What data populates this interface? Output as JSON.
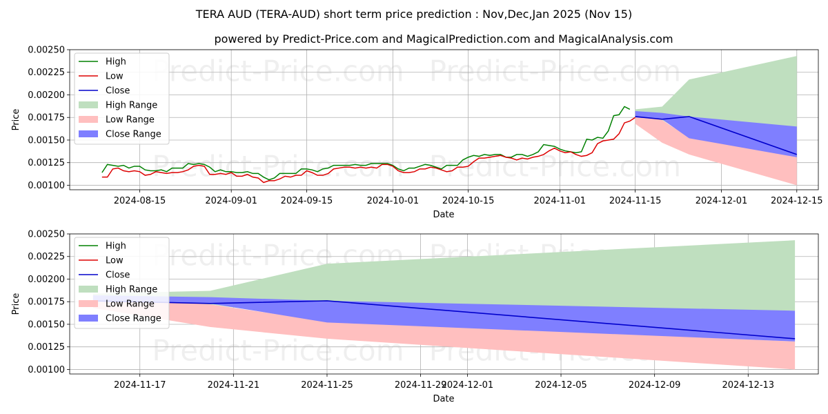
{
  "title": "TERA AUD (TERA-AUD) short term price prediction : Nov,Dec,Jan 2025 (Nov 15)",
  "subtitle": "powered by Predict-Price.com and MagicalPrediction.com and MagicalAnalysis.com",
  "watermark": "Predict-Price.com",
  "colors": {
    "high": "#008000",
    "low": "#dd0000",
    "close": "#0000cc",
    "high_range": "#bfdfbf",
    "low_range": "#ffbfbf",
    "close_range": "#7f7fff",
    "grid": "#b0b0b0"
  },
  "chart_data": [
    {
      "type": "line",
      "title": "",
      "xlabel": "Date",
      "ylabel": "Price",
      "xlim": [
        "2024-08-02",
        "2024-12-19"
      ],
      "ylim": [
        0.00095,
        0.0025
      ],
      "yticks": [
        0.001,
        0.00125,
        0.0015,
        0.00175,
        0.002,
        0.00225,
        0.0025
      ],
      "ytick_labels": [
        "0.00100",
        "0.00125",
        "0.00150",
        "0.00175",
        "0.00200",
        "0.00225",
        "0.00250"
      ],
      "xticks": [
        "2024-08-15",
        "2024-09-01",
        "2024-09-15",
        "2024-10-01",
        "2024-10-15",
        "2024-11-01",
        "2024-11-15",
        "2024-12-01",
        "2024-12-15"
      ],
      "xtick_labels": [
        "2024-08-15",
        "2024-09-01",
        "2024-09-15",
        "2024-10-01",
        "2024-10-15",
        "2024-11-01",
        "2024-11-15",
        "2024-12-01",
        "2024-12-15"
      ],
      "grid": true,
      "legend_position": "top-left",
      "legend": [
        "High",
        "Low",
        "Close",
        "High Range",
        "Low Range",
        "Close Range"
      ],
      "history_start": "2024-08-08",
      "series": [
        {
          "name": "High",
          "values": [
            0.00114,
            0.00123,
            0.00122,
            0.00121,
            0.00122,
            0.00119,
            0.00121,
            0.00121,
            0.00117,
            0.00116,
            0.00116,
            0.00117,
            0.00115,
            0.00119,
            0.00119,
            0.00119,
            0.00124,
            0.00123,
            0.00124,
            0.00123,
            0.0012,
            0.00115,
            0.00117,
            0.00115,
            0.00115,
            0.00114,
            0.00114,
            0.00115,
            0.00113,
            0.00113,
            0.00109,
            0.00106,
            0.00108,
            0.00113,
            0.00113,
            0.00113,
            0.00113,
            0.00118,
            0.00118,
            0.00117,
            0.00115,
            0.00118,
            0.00119,
            0.00122,
            0.00122,
            0.00122,
            0.00122,
            0.00123,
            0.00122,
            0.00122,
            0.00124,
            0.00124,
            0.00124,
            0.00124,
            0.00122,
            0.00118,
            0.00116,
            0.00119,
            0.00119,
            0.00121,
            0.00123,
            0.00122,
            0.0012,
            0.00118,
            0.00122,
            0.00122,
            0.00122,
            0.00128,
            0.00131,
            0.00133,
            0.00132,
            0.00134,
            0.00133,
            0.00134,
            0.00134,
            0.00131,
            0.00131,
            0.00134,
            0.00134,
            0.00132,
            0.00134,
            0.00137,
            0.00145,
            0.00144,
            0.00143,
            0.0014,
            0.00138,
            0.00137,
            0.00136,
            0.00137,
            0.00151,
            0.0015,
            0.00153,
            0.00152,
            0.0016,
            0.00177,
            0.00178,
            0.00187,
            0.00184
          ]
        },
        {
          "name": "Low",
          "values": [
            0.00109,
            0.00109,
            0.00118,
            0.00119,
            0.00116,
            0.00115,
            0.00116,
            0.00115,
            0.00111,
            0.00112,
            0.00115,
            0.00114,
            0.00113,
            0.00114,
            0.00114,
            0.00115,
            0.00117,
            0.00121,
            0.00122,
            0.00121,
            0.00112,
            0.00112,
            0.00113,
            0.00112,
            0.00114,
            0.0011,
            0.0011,
            0.00112,
            0.00109,
            0.00108,
            0.00103,
            0.00105,
            0.00105,
            0.00107,
            0.0011,
            0.00109,
            0.00111,
            0.00111,
            0.00116,
            0.00114,
            0.00111,
            0.00111,
            0.00113,
            0.00118,
            0.00119,
            0.0012,
            0.0012,
            0.00119,
            0.0012,
            0.00119,
            0.0012,
            0.00119,
            0.00123,
            0.00123,
            0.00121,
            0.00116,
            0.00114,
            0.00114,
            0.00115,
            0.00118,
            0.00118,
            0.0012,
            0.00119,
            0.00117,
            0.00115,
            0.00116,
            0.0012,
            0.0012,
            0.00121,
            0.00126,
            0.0013,
            0.0013,
            0.00131,
            0.00132,
            0.00133,
            0.00131,
            0.0013,
            0.00128,
            0.0013,
            0.00129,
            0.00131,
            0.00132,
            0.00134,
            0.00138,
            0.00141,
            0.00138,
            0.00136,
            0.00137,
            0.00134,
            0.00132,
            0.00133,
            0.00136,
            0.00146,
            0.00149,
            0.0015,
            0.00151,
            0.00157,
            0.00169,
            0.00171,
            0.00175
          ]
        }
      ],
      "forecast": {
        "dates": [
          "2024-11-15",
          "2024-11-20",
          "2024-11-25",
          "2024-12-15"
        ],
        "close": [
          0.00176,
          0.00173,
          0.00176,
          0.00134
        ],
        "high_range": [
          [
            0.00184,
            0.00172
          ],
          [
            0.00187,
            0.00172
          ],
          [
            0.00217,
            0.00155
          ],
          [
            0.00243,
            0.00165
          ]
        ],
        "low_range": [
          [
            0.00179,
            0.00168
          ],
          [
            0.00172,
            0.00147
          ],
          [
            0.00153,
            0.00134
          ],
          [
            0.00131,
            0.001
          ]
        ],
        "close_range": [
          [
            0.00182,
            0.00175
          ],
          [
            0.0018,
            0.00173
          ],
          [
            0.00176,
            0.00152
          ],
          [
            0.00165,
            0.00131
          ]
        ]
      }
    },
    {
      "type": "line",
      "title": "",
      "xlabel": "Date",
      "ylabel": "Price",
      "xlim": [
        "2024-11-14",
        "2024-12-16"
      ],
      "ylim": [
        0.00095,
        0.0025
      ],
      "yticks": [
        0.001,
        0.00125,
        0.0015,
        0.00175,
        0.002,
        0.00225,
        0.0025
      ],
      "ytick_labels": [
        "0.00100",
        "0.00125",
        "0.00150",
        "0.00175",
        "0.00200",
        "0.00225",
        "0.00250"
      ],
      "xticks": [
        "2024-11-17",
        "2024-11-21",
        "2024-11-25",
        "2024-11-29",
        "2024-12-01",
        "2024-12-05",
        "2024-12-09",
        "2024-12-13"
      ],
      "xtick_labels": [
        "2024-11-17",
        "2024-11-21",
        "2024-11-25",
        "2024-11-29",
        "2024-12-01",
        "2024-12-05",
        "2024-12-09",
        "2024-12-13"
      ],
      "grid": true,
      "legend_position": "top-left",
      "legend": [
        "High",
        "Low",
        "Close",
        "High Range",
        "Low Range",
        "Close Range"
      ],
      "forecast": {
        "dates": [
          "2024-11-15",
          "2024-11-20",
          "2024-11-25",
          "2024-12-15"
        ],
        "close": [
          0.00176,
          0.00173,
          0.00176,
          0.00134
        ],
        "high_range": [
          [
            0.00184,
            0.00172
          ],
          [
            0.00187,
            0.00172
          ],
          [
            0.00217,
            0.00155
          ],
          [
            0.00243,
            0.00165
          ]
        ],
        "low_range": [
          [
            0.00179,
            0.00168
          ],
          [
            0.00172,
            0.00147
          ],
          [
            0.00153,
            0.00134
          ],
          [
            0.00131,
            0.001
          ]
        ],
        "close_range": [
          [
            0.00182,
            0.00175
          ],
          [
            0.0018,
            0.00173
          ],
          [
            0.00176,
            0.00152
          ],
          [
            0.00165,
            0.00131
          ]
        ]
      }
    }
  ]
}
